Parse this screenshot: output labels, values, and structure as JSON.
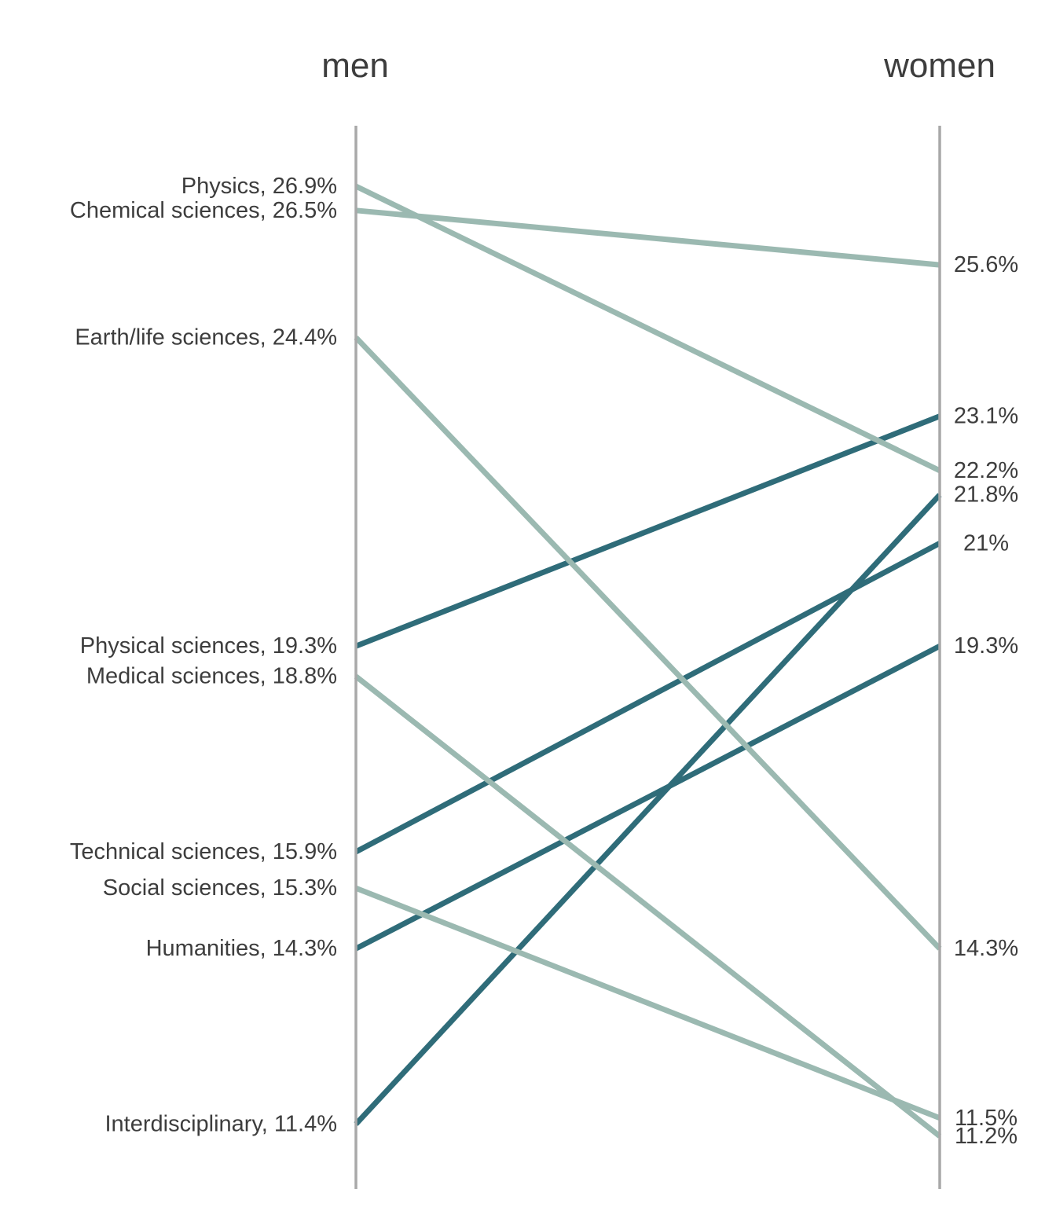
{
  "chart_data": {
    "type": "line",
    "subtype": "slope-graph",
    "columns": [
      "men",
      "women"
    ],
    "unit": "%",
    "series": [
      {
        "name": "Physics",
        "men": 26.9,
        "women": 22.2,
        "left_label": "Physics, 26.9%",
        "right_label": "22.2%",
        "direction": "decrease"
      },
      {
        "name": "Chemical sciences",
        "men": 26.5,
        "women": 25.6,
        "left_label": "Chemical sciences, 26.5%",
        "right_label": "25.6%",
        "direction": "decrease"
      },
      {
        "name": "Earth/life sciences",
        "men": 24.4,
        "women": 14.3,
        "left_label": "Earth/life sciences, 24.4%",
        "right_label": "14.3%",
        "direction": "decrease"
      },
      {
        "name": "Physical sciences",
        "men": 19.3,
        "women": 23.1,
        "left_label": "Physical sciences, 19.3%",
        "right_label": "23.1%",
        "direction": "increase"
      },
      {
        "name": "Medical sciences",
        "men": 18.8,
        "women": 11.2,
        "left_label": "Medical sciences, 18.8%",
        "right_label": "11.2%",
        "direction": "decrease"
      },
      {
        "name": "Technical sciences",
        "men": 15.9,
        "women": 21.0,
        "left_label": "Technical sciences, 15.9%",
        "right_label": "21%",
        "direction": "increase"
      },
      {
        "name": "Social sciences",
        "men": 15.3,
        "women": 11.5,
        "left_label": "Social sciences, 15.3%",
        "right_label": "11.5%",
        "direction": "decrease"
      },
      {
        "name": "Humanities",
        "men": 14.3,
        "women": 19.3,
        "left_label": "Humanities, 14.3%",
        "right_label": "19.3%",
        "direction": "increase"
      },
      {
        "name": "Interdisciplinary",
        "men": 11.4,
        "women": 21.8,
        "left_label": "Interdisciplinary, 11.4%",
        "right_label": "21.8%",
        "direction": "increase"
      }
    ],
    "colors": {
      "increase": "#2f6c79",
      "decrease": "#9bb9b1",
      "axis": "#a8a8a8",
      "label_text": "#3d3d3d"
    },
    "legend_position": "none",
    "grid": false
  }
}
